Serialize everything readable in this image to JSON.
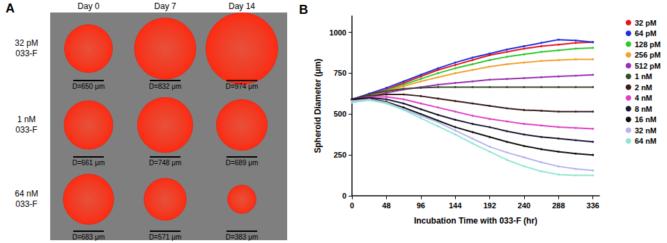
{
  "panel_a": {
    "label": "A",
    "columns": [
      "Day 0",
      "Day 7",
      "Day 14"
    ],
    "rows": [
      {
        "label": [
          "32 pM",
          "033-F"
        ],
        "diameters": [
          650,
          832,
          974
        ],
        "diameter_labels": [
          "D=650 μm",
          "D=832 μm",
          "D=974 μm"
        ]
      },
      {
        "label": [
          "1 nM",
          "033-F"
        ],
        "diameters": [
          661,
          748,
          689
        ],
        "diameter_labels": [
          "D=661 μm",
          "D=748 μm",
          "D=689 μm"
        ]
      },
      {
        "label": [
          "64 nM",
          "033-F"
        ],
        "diameters": [
          683,
          571,
          383
        ],
        "diameter_labels": [
          "D=683 μm",
          "D=571 μm",
          "D=383 μm"
        ]
      }
    ]
  },
  "chart_data": {
    "type": "line",
    "title": "B",
    "x_label": "Incubation Time with 033-F (hr)",
    "y_label": "Spheroid Diameter (μm)",
    "x": [
      0,
      24,
      48,
      72,
      96,
      120,
      144,
      168,
      192,
      216,
      240,
      264,
      288,
      312,
      336
    ],
    "xlim": [
      0,
      345
    ],
    "xticks": [
      0,
      48,
      96,
      144,
      192,
      240,
      288,
      336
    ],
    "ylim": [
      0,
      1100
    ],
    "yticks": [
      0,
      250,
      500,
      750,
      1000
    ],
    "grid": false,
    "legend": "top-right",
    "marker": "circle",
    "series": [
      {
        "name": "32 pM",
        "color": "#e8141c",
        "values": [
          590,
          620,
          650,
          690,
          730,
          770,
          800,
          830,
          860,
          880,
          900,
          915,
          925,
          935,
          940
        ]
      },
      {
        "name": "64 pM",
        "color": "#1f2ee0",
        "values": [
          590,
          625,
          660,
          700,
          740,
          780,
          815,
          845,
          870,
          895,
          915,
          935,
          955,
          950,
          940
        ]
      },
      {
        "name": "128 pM",
        "color": "#2ec82e",
        "values": [
          585,
          615,
          645,
          680,
          715,
          750,
          780,
          805,
          830,
          850,
          865,
          880,
          890,
          900,
          905
        ]
      },
      {
        "name": "256 pM",
        "color": "#f5a030",
        "values": [
          580,
          610,
          640,
          670,
          700,
          725,
          750,
          770,
          790,
          805,
          815,
          825,
          830,
          835,
          835
        ]
      },
      {
        "name": "512 pM",
        "color": "#9a30b0",
        "values": [
          580,
          605,
          630,
          650,
          665,
          680,
          690,
          700,
          710,
          715,
          720,
          725,
          730,
          735,
          740
        ]
      },
      {
        "name": "1 nM",
        "color": "#3a4a2a",
        "values": [
          590,
          620,
          640,
          655,
          660,
          665,
          665,
          665,
          665,
          665,
          665,
          665,
          665,
          665,
          665
        ]
      },
      {
        "name": "2 nM",
        "color": "#3a1a1a",
        "values": [
          590,
          610,
          620,
          620,
          610,
          595,
          580,
          565,
          550,
          535,
          525,
          520,
          515,
          515,
          515
        ]
      },
      {
        "name": "4 nM",
        "color": "#e040c8",
        "values": [
          590,
          605,
          605,
          590,
          565,
          540,
          515,
          490,
          470,
          455,
          440,
          430,
          420,
          415,
          410
        ]
      },
      {
        "name": "8 nM",
        "color": "#1a1a30",
        "values": [
          590,
          600,
          590,
          565,
          530,
          495,
          465,
          440,
          420,
          395,
          375,
          360,
          350,
          340,
          330
        ]
      },
      {
        "name": "16 nM",
        "color": "#101010",
        "values": [
          590,
          595,
          575,
          540,
          500,
          460,
          420,
          390,
          360,
          330,
          305,
          285,
          270,
          258,
          250
        ]
      },
      {
        "name": "32 nM",
        "color": "#b4b4f0",
        "values": [
          580,
          590,
          570,
          530,
          490,
          450,
          400,
          350,
          300,
          265,
          235,
          205,
          180,
          165,
          155
        ]
      },
      {
        "name": "64 nM",
        "color": "#90e6d4",
        "values": [
          570,
          585,
          565,
          525,
          475,
          425,
          375,
          320,
          270,
          220,
          180,
          150,
          130,
          125,
          125
        ]
      }
    ]
  }
}
